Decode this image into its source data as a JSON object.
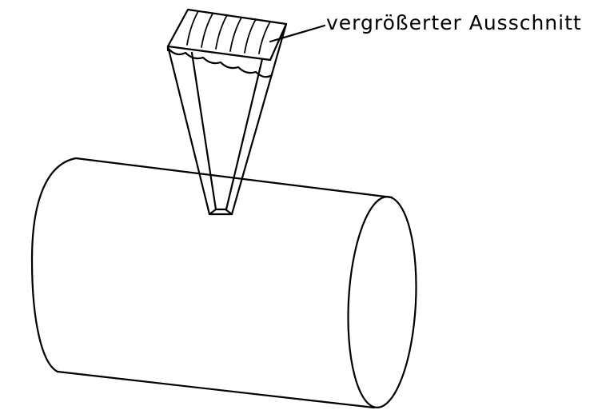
{
  "diagram": {
    "callout_label": "vergrößerter Ausschnitt",
    "stroke_color": "#000000",
    "background_color": "#ffffff"
  }
}
